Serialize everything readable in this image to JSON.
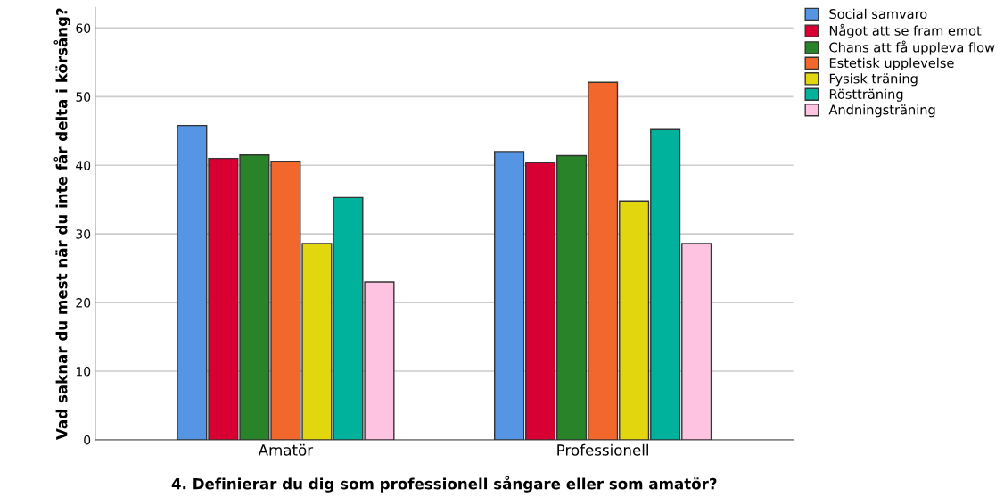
{
  "chart_data": {
    "type": "bar",
    "xlabel": "4. Definierar du dig som professionell sångare eller som amatör?",
    "ylabel": "Vad saknar du mest när du inte får delta i körsång?",
    "categories": [
      "Amatör",
      "Professionell"
    ],
    "series": [
      {
        "name": "Social samvaro",
        "color": "#5595e3",
        "values": [
          45.8,
          42.0
        ]
      },
      {
        "name": "Något att se fram emot",
        "color": "#d80032",
        "values": [
          41.0,
          40.4
        ]
      },
      {
        "name": "Chans att få uppleva flow",
        "color": "#298328",
        "values": [
          41.5,
          41.4
        ]
      },
      {
        "name": "Estetisk upplevelse",
        "color": "#f2672c",
        "values": [
          40.6,
          52.1
        ]
      },
      {
        "name": "Fysisk träning",
        "color": "#e2d70f",
        "values": [
          28.6,
          34.8
        ]
      },
      {
        "name": "Röstträning",
        "color": "#00b19c",
        "values": [
          35.3,
          45.2
        ]
      },
      {
        "name": "Andningsträning",
        "color": "#fec3e1",
        "values": [
          23.0,
          28.6
        ]
      }
    ],
    "ylim": [
      0,
      63
    ],
    "yticks": [
      0,
      10,
      20,
      30,
      40,
      50,
      60
    ],
    "grid": "y",
    "legend": "top right"
  }
}
